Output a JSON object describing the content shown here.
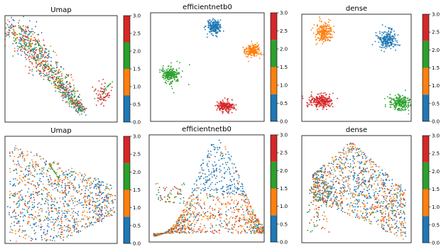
{
  "colorbar": {
    "range": [
      0.0,
      3.0
    ],
    "tick_labels": [
      "0.0",
      "0.5",
      "1.0",
      "1.5",
      "2.0",
      "2.5",
      "3.0"
    ],
    "colors": [
      "#1f77b4",
      "#ff7f0e",
      "#2ca02c",
      "#d62728"
    ]
  },
  "chart_data": [
    {
      "type": "scatter",
      "title": "Umap",
      "grid": false,
      "axes_ticks": "hidden",
      "shape": "wide-diagonal-band",
      "clusters": [
        {
          "class": 0,
          "desc": "main band (mixed classes)"
        },
        {
          "class": 3,
          "desc": "small island on right"
        }
      ],
      "color_scale": {
        "min": 0.0,
        "max": 3.0
      }
    },
    {
      "type": "scatter",
      "title": "efficientnetb0",
      "grid": false,
      "axes_ticks": "hidden",
      "clusters": [
        {
          "class": 0,
          "position": "top-center"
        },
        {
          "class": 1,
          "position": "right"
        },
        {
          "class": 2,
          "position": "left"
        },
        {
          "class": 3,
          "position": "bottom-center"
        }
      ],
      "color_scale": {
        "min": 0.0,
        "max": 3.0
      }
    },
    {
      "type": "scatter",
      "title": "dense",
      "grid": false,
      "axes_ticks": "hidden",
      "clusters": [
        {
          "class": 1,
          "position": "top-left"
        },
        {
          "class": 0,
          "position": "top-right"
        },
        {
          "class": 3,
          "position": "bottom-left"
        },
        {
          "class": 2,
          "position": "bottom-right"
        }
      ],
      "color_scale": {
        "min": 0.0,
        "max": 3.0
      }
    },
    {
      "type": "scatter",
      "title": "Umap",
      "grid": false,
      "axes_ticks": "hidden",
      "shape": "broad-band",
      "color_scale": {
        "min": 0.0,
        "max": 3.0
      }
    },
    {
      "type": "scatter",
      "title": "efficientnetb0",
      "grid": false,
      "axes_ticks": "hidden",
      "shape": "mound",
      "color_scale": {
        "min": 0.0,
        "max": 3.0
      }
    },
    {
      "type": "scatter",
      "title": "dense",
      "grid": false,
      "axes_ticks": "hidden",
      "shape": "wedge",
      "color_scale": {
        "min": 0.0,
        "max": 3.0
      }
    }
  ]
}
